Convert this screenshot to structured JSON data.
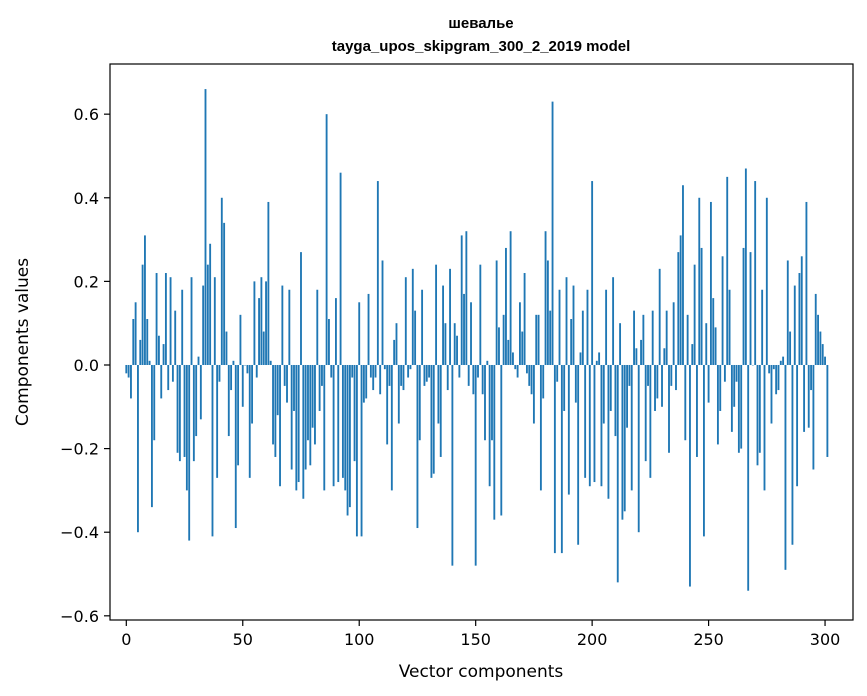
{
  "chart_data": {
    "type": "bar",
    "title": "шевалье",
    "subtitle": "tayga_upos_skipgram_300_2_2019 model",
    "xlabel": "Vector components",
    "ylabel": "Components values",
    "xlim": [
      -7,
      312
    ],
    "ylim": [
      -0.61,
      0.72
    ],
    "xticks": [
      0,
      50,
      100,
      150,
      200,
      250,
      300
    ],
    "yticks": [
      -0.6,
      -0.4,
      -0.2,
      0.0,
      0.2,
      0.4,
      0.6
    ],
    "ytick_labels": [
      "−0.6",
      "−0.4",
      "−0.2",
      "0.0",
      "0.2",
      "0.4",
      "0.6"
    ],
    "bar_color": "#1f77b4",
    "grid": false,
    "x": "0..299",
    "values": [
      -0.02,
      -0.03,
      -0.08,
      0.11,
      0.15,
      -0.4,
      0.06,
      0.24,
      0.31,
      0.11,
      0.01,
      -0.34,
      -0.18,
      0.22,
      0.07,
      -0.08,
      0.05,
      0.22,
      -0.06,
      0.21,
      -0.04,
      0.13,
      -0.21,
      -0.23,
      0.18,
      -0.22,
      -0.3,
      -0.42,
      0.21,
      -0.23,
      -0.17,
      0.02,
      -0.13,
      0.19,
      0.66,
      0.24,
      0.29,
      -0.41,
      0.21,
      -0.27,
      -0.04,
      0.4,
      0.34,
      0.08,
      -0.17,
      -0.06,
      0.01,
      -0.39,
      -0.24,
      0.12,
      -0.1,
      0.0,
      -0.02,
      -0.27,
      -0.14,
      0.2,
      -0.03,
      0.16,
      0.21,
      0.08,
      0.2,
      0.39,
      0.01,
      -0.19,
      -0.22,
      -0.12,
      -0.29,
      0.19,
      -0.05,
      -0.09,
      0.18,
      -0.25,
      -0.11,
      -0.3,
      -0.28,
      0.27,
      -0.32,
      -0.25,
      -0.18,
      -0.24,
      -0.15,
      -0.19,
      0.18,
      -0.11,
      -0.05,
      -0.3,
      0.6,
      0.11,
      -0.03,
      -0.29,
      0.16,
      -0.28,
      0.46,
      -0.27,
      -0.3,
      -0.36,
      -0.34,
      -0.03,
      -0.23,
      -0.41,
      0.15,
      -0.41,
      -0.09,
      -0.08,
      0.17,
      -0.03,
      -0.06,
      -0.03,
      0.44,
      -0.07,
      0.25,
      -0.01,
      -0.19,
      -0.05,
      -0.3,
      0.06,
      0.1,
      -0.14,
      -0.05,
      -0.06,
      0.21,
      -0.03,
      -0.01,
      0.23,
      0.13,
      -0.39,
      -0.18,
      0.18,
      -0.05,
      -0.04,
      -0.03,
      -0.27,
      -0.26,
      0.24,
      -0.14,
      -0.22,
      0.19,
      0.1,
      -0.06,
      0.23,
      -0.48,
      0.1,
      0.07,
      -0.03,
      0.31,
      0.17,
      0.32,
      -0.05,
      0.15,
      -0.07,
      -0.48,
      -0.03,
      0.24,
      -0.07,
      -0.18,
      0.01,
      -0.29,
      -0.18,
      -0.37,
      0.25,
      0.09,
      -0.36,
      0.12,
      0.28,
      0.06,
      0.32,
      0.03,
      -0.01,
      -0.03,
      0.15,
      0.08,
      0.22,
      -0.02,
      -0.05,
      -0.07,
      -0.14,
      0.12,
      0.12,
      -0.3,
      -0.08,
      0.32,
      0.25,
      0.13,
      0.63,
      -0.45,
      -0.04,
      0.18,
      -0.45,
      -0.11,
      0.21,
      -0.31,
      0.11,
      0.19,
      -0.09,
      -0.43,
      0.03,
      0.13,
      -0.27,
      0.18,
      -0.29,
      0.44,
      -0.28,
      0.01,
      0.03,
      -0.29,
      -0.14,
      0.18,
      -0.32,
      -0.11,
      0.21,
      -0.17,
      -0.52,
      0.1,
      -0.37,
      -0.35,
      -0.15,
      -0.05,
      -0.3,
      0.13,
      0.04,
      -0.4,
      0.06,
      0.12,
      -0.23,
      -0.05,
      -0.27,
      0.13,
      -0.11,
      -0.08,
      0.23,
      -0.1,
      0.04,
      0.13,
      -0.21,
      -0.05,
      0.15,
      -0.06,
      0.27,
      0.31,
      0.43,
      -0.18,
      0.12,
      -0.53,
      0.05,
      0.24,
      -0.22,
      0.4,
      0.28,
      -0.41,
      0.1,
      -0.09,
      0.39,
      0.16,
      0.09,
      -0.19,
      -0.11,
      0.26,
      -0.04,
      0.45,
      0.18,
      -0.16,
      -0.1,
      -0.04,
      -0.21,
      -0.2,
      0.28,
      0.47,
      -0.54,
      0.27,
      0.0,
      0.44,
      -0.24,
      -0.21,
      0.18,
      -0.3,
      0.4,
      -0.02,
      -0.14,
      -0.01,
      -0.07,
      -0.06,
      0.01,
      0.02,
      -0.49,
      0.25,
      0.08,
      -0.43,
      0.19,
      -0.29,
      0.22,
      0.26,
      -0.16,
      0.39,
      -0.15,
      -0.06,
      -0.25,
      0.17,
      0.12,
      0.08,
      0.05,
      0.02,
      -0.22
    ]
  }
}
